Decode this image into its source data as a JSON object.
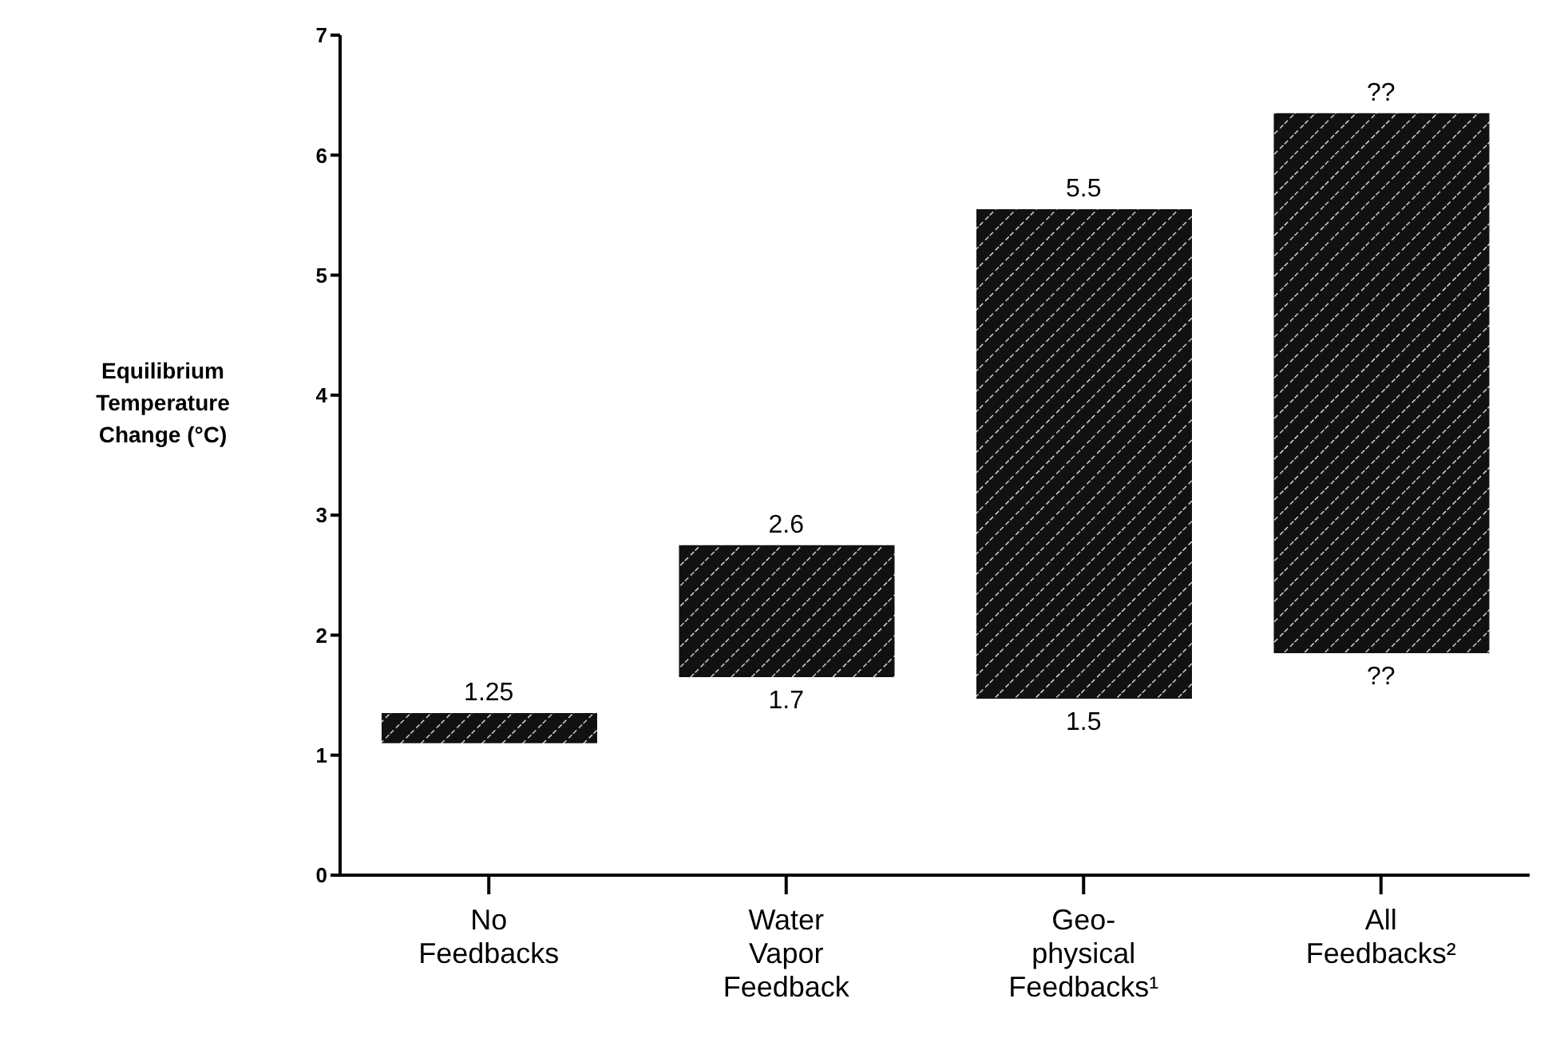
{
  "chart_data": {
    "type": "bar",
    "ylabel": "Equilibrium Temperature Change (°C)",
    "categories": [
      "No Feedbacks",
      "Water Vapor Feedback",
      "Geo-physical Feedbacks¹",
      "All Feedbacks²"
    ],
    "base": [
      1.1,
      1.65,
      1.47,
      1.85
    ],
    "values": [
      0.25,
      1.1,
      4.08,
      4.5
    ],
    "color": "#111111",
    "ylim": [
      0,
      7
    ],
    "yticks": [
      0,
      1,
      2,
      3,
      4,
      5,
      6,
      7
    ],
    "annotations": [
      {
        "text": "1.25",
        "x": "No Feedbacks",
        "y": 1.35
      },
      {
        "text": "2.6",
        "x": "Water Vapor Feedback",
        "y": 2.75
      },
      {
        "text": "1.7",
        "x": "Water Vapor Feedback",
        "y": 1.65
      },
      {
        "text": "5.5",
        "x": "Geo-physical Feedbacks¹",
        "y": 5.55
      },
      {
        "text": "1.5",
        "x": "Geo-physical Feedbacks¹",
        "y": 1.47
      },
      {
        "text": "??",
        "x": "All Feedbacks²",
        "y": 6.35
      },
      {
        "text": "??",
        "x": "All Feedbacks²",
        "y": 1.85
      }
    ]
  }
}
